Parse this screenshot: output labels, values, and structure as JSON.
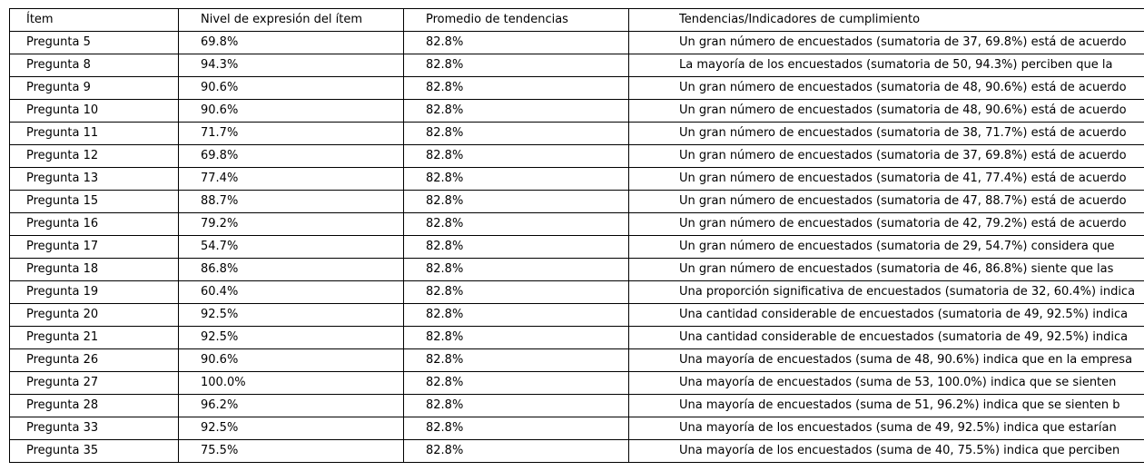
{
  "table": {
    "headers": [
      "Ítem",
      "Nivel de expresión del ítem",
      "Promedio de tendencias",
      "Tendencias/Indicadores de cumplimiento"
    ],
    "rows": [
      [
        "Pregunta 5",
        "69.8%",
        "82.8%",
        "Un gran número de encuestados (sumatoria de 37, 69.8%) está de acuerdo"
      ],
      [
        "Pregunta 8",
        "94.3%",
        "82.8%",
        "La mayoría de los encuestados (sumatoria de 50, 94.3%) perciben que la"
      ],
      [
        "Pregunta 9",
        "90.6%",
        "82.8%",
        "Un gran número de encuestados (sumatoria de 48, 90.6%) está de acuerdo"
      ],
      [
        "Pregunta 10",
        "90.6%",
        "82.8%",
        "Un gran número de encuestados (sumatoria de 48, 90.6%) está de acuerdo"
      ],
      [
        "Pregunta 11",
        "71.7%",
        "82.8%",
        "Un gran número de encuestados (sumatoria de 38, 71.7%) está de acuerdo"
      ],
      [
        "Pregunta 12",
        "69.8%",
        "82.8%",
        "Un gran número de encuestados (sumatoria de 37, 69.8%) está de acuerdo"
      ],
      [
        "Pregunta 13",
        "77.4%",
        "82.8%",
        "Un gran número de encuestados (sumatoria de 41, 77.4%) está de acuerdo"
      ],
      [
        "Pregunta 15",
        "88.7%",
        "82.8%",
        "Un gran número de encuestados (sumatoria de 47, 88.7%) está de acuerdo"
      ],
      [
        "Pregunta 16",
        "79.2%",
        "82.8%",
        "Un gran número de encuestados (sumatoria de 42, 79.2%) está de acuerdo"
      ],
      [
        "Pregunta 17",
        "54.7%",
        "82.8%",
        "Un gran número de encuestados (sumatoria de 29, 54.7%) considera que"
      ],
      [
        "Pregunta 18",
        "86.8%",
        "82.8%",
        "Un gran número de encuestados (sumatoria de 46, 86.8%) siente que las"
      ],
      [
        "Pregunta 19",
        "60.4%",
        "82.8%",
        "Una proporción significativa de encuestados (sumatoria de 32, 60.4%) indica"
      ],
      [
        "Pregunta 20",
        "92.5%",
        "82.8%",
        "Una cantidad considerable de encuestados (sumatoria de 49, 92.5%) indica"
      ],
      [
        "Pregunta 21",
        "92.5%",
        "82.8%",
        "Una cantidad considerable de encuestados (sumatoria de 49, 92.5%) indica"
      ],
      [
        "Pregunta 26",
        "90.6%",
        "82.8%",
        "Una mayoría de encuestados (suma de 48, 90.6%) indica que en la empresa"
      ],
      [
        "Pregunta 27",
        "100.0%",
        "82.8%",
        "Una mayoría de encuestados (suma de 53, 100.0%) indica que se sienten"
      ],
      [
        "Pregunta 28",
        "96.2%",
        "82.8%",
        "Una mayoría de encuestados (suma de 51, 96.2%) indica que se sienten b"
      ],
      [
        "Pregunta 33",
        "92.5%",
        "82.8%",
        "Una mayoría de los encuestados (suma de 49, 92.5%) indica que estarían"
      ],
      [
        "Pregunta 35",
        "75.5%",
        "82.8%",
        "Una mayoría de los encuestados (suma de 40, 75.5%) indica que perciben"
      ]
    ]
  }
}
